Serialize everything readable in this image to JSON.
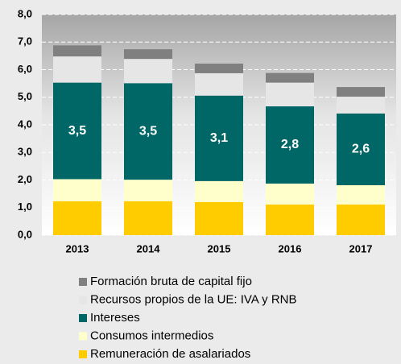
{
  "chart_data": {
    "type": "stacked_bar",
    "categories": [
      "2013",
      "2014",
      "2015",
      "2016",
      "2017"
    ],
    "series": [
      {
        "name": "Remuneración de asalariados",
        "color": "#ffcc00",
        "values": [
          1.23,
          1.23,
          1.2,
          1.11,
          1.11
        ]
      },
      {
        "name": "Consumos intermedios",
        "color": "#ffffcc",
        "values": [
          0.8,
          0.78,
          0.76,
          0.76,
          0.7
        ]
      },
      {
        "name": "Intereses",
        "color": "#006666",
        "values": [
          3.5,
          3.5,
          3.1,
          2.8,
          2.6
        ],
        "value_labels": [
          "3,5",
          "3,5",
          "3,1",
          "2,8",
          "2,6"
        ]
      },
      {
        "name": "Recursos propios de la UE: IVA y RNB",
        "color": "#e6e6e6",
        "values": [
          0.95,
          0.88,
          0.81,
          0.86,
          0.61
        ]
      },
      {
        "name": "Formación bruta de capital fijo",
        "color": "#808080",
        "values": [
          0.4,
          0.35,
          0.35,
          0.35,
          0.35
        ]
      }
    ],
    "ylim": [
      0,
      8
    ],
    "yticks": [
      {
        "value": 0,
        "label": "0,0"
      },
      {
        "value": 1,
        "label": "1,0"
      },
      {
        "value": 2,
        "label": "2,0"
      },
      {
        "value": 3,
        "label": "3,0"
      },
      {
        "value": 4,
        "label": "4,0"
      },
      {
        "value": 5,
        "label": "5,0"
      },
      {
        "value": 6,
        "label": "6,0"
      },
      {
        "value": 7,
        "label": "7,0"
      },
      {
        "value": 8,
        "label": "8,0"
      }
    ],
    "grid": true
  }
}
